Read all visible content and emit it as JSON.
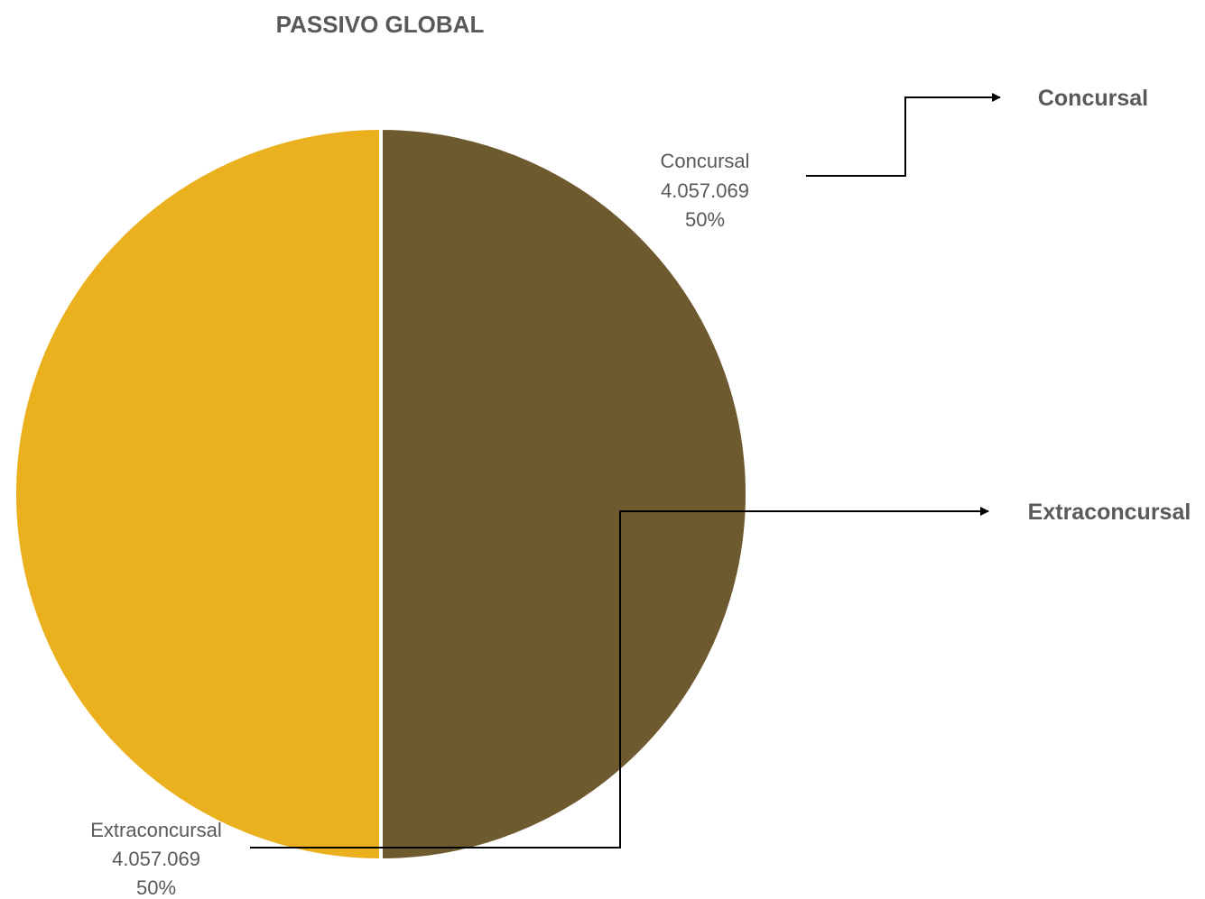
{
  "chart_data": {
    "type": "pie",
    "title": "PASSIVO GLOBAL",
    "slices": [
      {
        "name": "Concursal",
        "value": 4057069,
        "value_label": "4.057.069",
        "percent_label": "50%",
        "color": "#6E5A2F"
      },
      {
        "name": "Extraconcursal",
        "value": 4057069,
        "value_label": "4.057.069",
        "percent_label": "50%",
        "color": "#EAB01E"
      }
    ],
    "legend": {
      "placement": "right",
      "items": [
        "Concursal",
        "Extraconcursal"
      ]
    },
    "slice_border_color": "#FFFFFF",
    "connector_color": "#000000"
  }
}
